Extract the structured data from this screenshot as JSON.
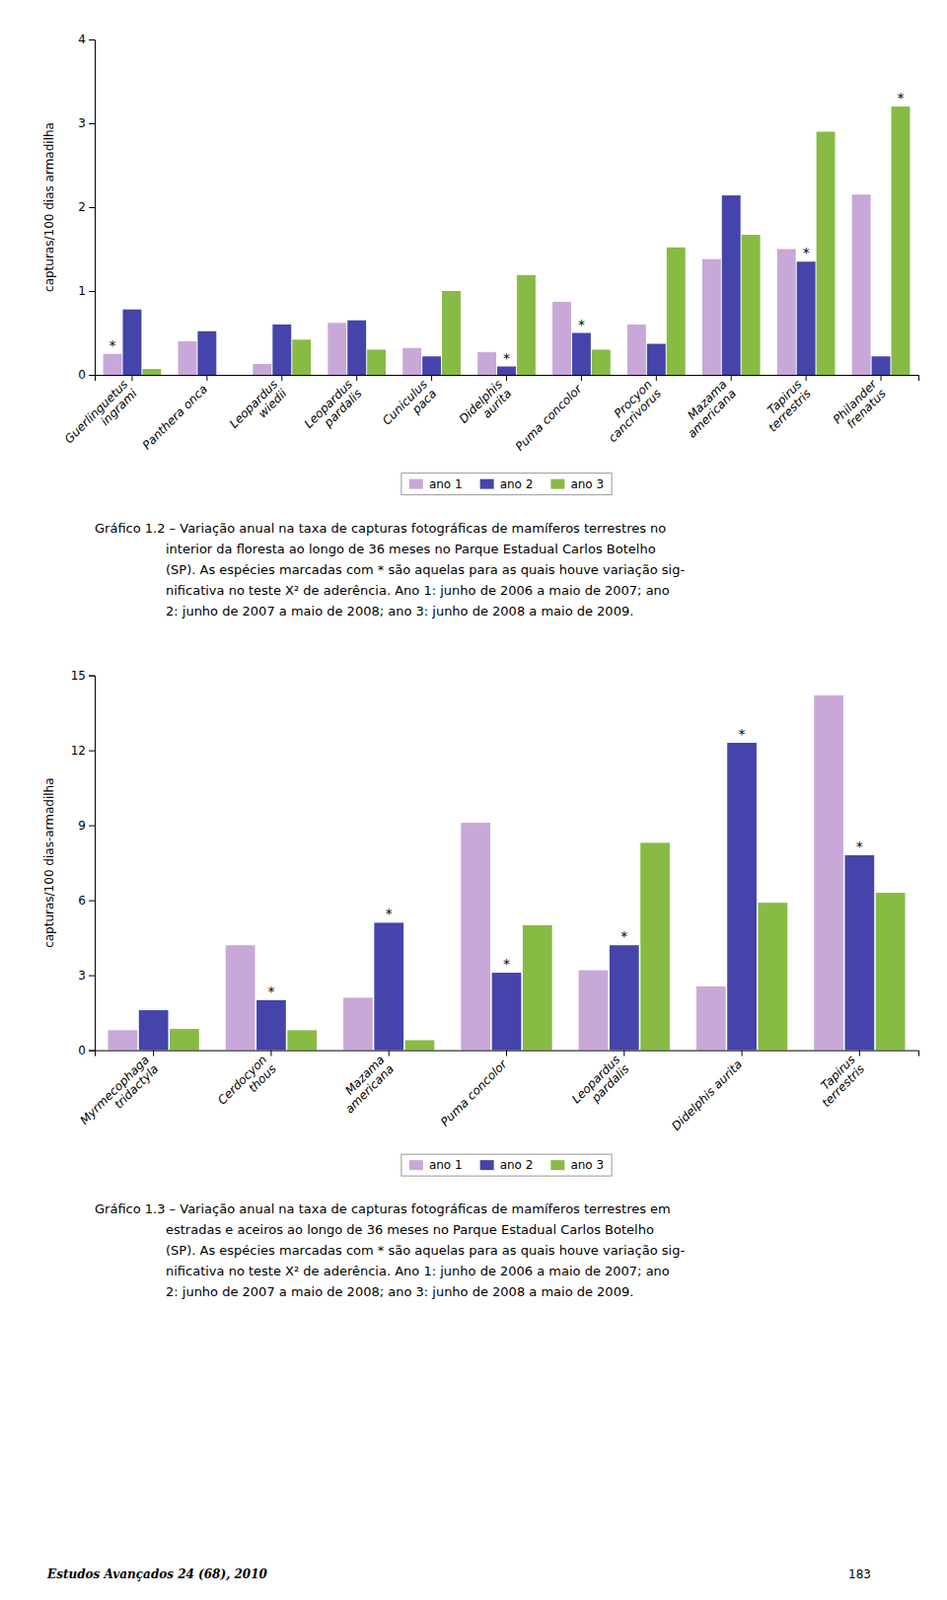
{
  "chart_data": [
    {
      "type": "bar",
      "categories": [
        "Guerlinguetus\ningrami",
        "Panthera onca",
        "Leopardus\nwiedii",
        "Leopardus\npardalis",
        "Cuniculus\npaca",
        "Didelphis\naurita",
        "Puma concolor",
        "Procyon\ncancrivorus",
        "Mazama\namericana",
        "Tapirus\nterrestris",
        "Philander\nfrenatus"
      ],
      "series": [
        {
          "name": "ano 1",
          "color": "#C8A8D8",
          "values": [
            0.25,
            0.4,
            0.13,
            0.62,
            0.32,
            0.27,
            0.87,
            0.6,
            1.38,
            1.5,
            2.15
          ]
        },
        {
          "name": "ano 2",
          "color": "#4444AA",
          "values": [
            0.78,
            0.52,
            0.6,
            0.65,
            0.22,
            0.1,
            0.5,
            0.37,
            2.14,
            1.35,
            0.22
          ]
        },
        {
          "name": "ano 3",
          "color": "#88BB44",
          "values": [
            0.07,
            0.0,
            0.42,
            0.3,
            1.0,
            1.19,
            0.3,
            1.52,
            1.67,
            2.9,
            3.2
          ]
        }
      ],
      "ylabel": "capturas/100 dias armadilha",
      "ylim": [
        0,
        4
      ],
      "yticks": [
        0,
        1,
        2,
        3,
        4
      ],
      "grid": false,
      "legend": "bottom",
      "annotations": [
        {
          "text": "*",
          "category": "Guerlinguetus\ningrami",
          "series": "ano 1"
        },
        {
          "text": "*",
          "category": "Didelphis\naurita",
          "series": "ano 2"
        },
        {
          "text": "*",
          "category": "Puma concolor",
          "series": "ano 2"
        },
        {
          "text": "*",
          "category": "Tapirus\nterrestris",
          "series": "ano 2"
        },
        {
          "text": "*",
          "category": "Philander\nfrenatus",
          "series": "ano 3"
        }
      ],
      "caption": [
        "Gráfico 1.2 – Variação anual na taxa de capturas fotográficas de mamíferos terrestres no",
        "interior da floresta ao longo de 36 meses no Parque Estadual Carlos Botelho",
        "(SP). As espécies marcadas com * são aquelas para as quais houve variação sig-",
        "nificativa no teste X² de aderência. Ano 1: junho de 2006 a maio de 2007; ano",
        "2: junho de 2007 a maio de 2008; ano 3: junho de 2008 a maio de 2009."
      ]
    },
    {
      "type": "bar",
      "categories": [
        "Myrmecophaga\ntridactyla",
        "Cerdocyon\nthous",
        "Mazama\namericana",
        "Puma concolor",
        "Leopardus\npardalis",
        "Didelphis aurita",
        "Tapirus\nterrestris"
      ],
      "series": [
        {
          "name": "ano 1",
          "color": "#C8A8D8",
          "values": [
            0.8,
            4.2,
            2.1,
            9.1,
            3.2,
            2.55,
            14.2
          ]
        },
        {
          "name": "ano 2",
          "color": "#4444AA",
          "values": [
            1.6,
            2.0,
            5.1,
            3.1,
            4.2,
            12.3,
            7.8
          ]
        },
        {
          "name": "ano 3",
          "color": "#88BB44",
          "values": [
            0.85,
            0.8,
            0.4,
            5.0,
            8.3,
            5.9,
            6.3
          ]
        }
      ],
      "ylabel": "capturas/100 dias-armadilha",
      "ylim": [
        0,
        15
      ],
      "yticks": [
        0,
        3,
        6,
        9,
        12,
        15
      ],
      "grid": false,
      "legend": "bottom",
      "annotations": [
        {
          "text": "*",
          "category": "Cerdocyon\nthous",
          "series": "ano 2"
        },
        {
          "text": "*",
          "category": "Mazama\namericana",
          "series": "ano 2"
        },
        {
          "text": "*",
          "category": "Puma concolor",
          "series": "ano 2"
        },
        {
          "text": "*",
          "category": "Leopardus\npardalis",
          "series": "ano 2"
        },
        {
          "text": "*",
          "category": "Didelphis aurita",
          "series": "ano 2"
        },
        {
          "text": "*",
          "category": "Tapirus\nterrestris",
          "series": "ano 2"
        }
      ],
      "caption": [
        "Gráfico 1.3 – Variação anual na taxa de capturas fotográficas de mamíferos terrestres em",
        "estradas e aceiros ao longo de 36 meses no Parque Estadual Carlos Botelho",
        "(SP). As espécies marcadas com * são aquelas para as quais houve variação sig-",
        "nificativa no teste X² de aderência. Ano 1: junho de 2006 a maio de 2007; ano",
        "2: junho de 2007 a maio de 2008; ano 3: junho de 2008 a maio de 2009."
      ]
    }
  ],
  "footer": [
    "Estudos Avançados 24 (68), 2010",
    "183"
  ]
}
